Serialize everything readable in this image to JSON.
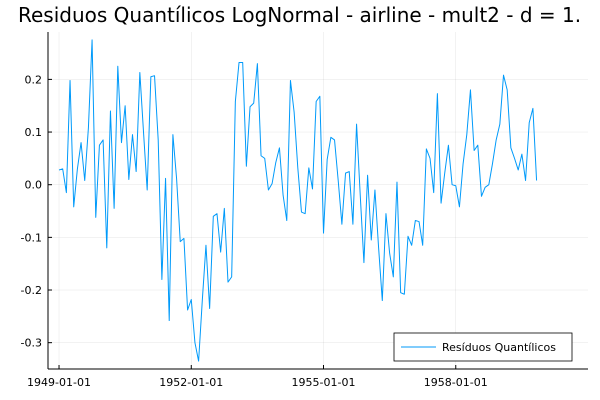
{
  "chart_data": {
    "type": "line",
    "title": "Residuos Quantílicos LogNormal - airline - mult2 - d = 1.",
    "xlabel": "",
    "ylabel": "",
    "x_start": "1949-01-01",
    "x_frequency": "monthly",
    "xlim": [
      "1948-10-01",
      "1961-01-01"
    ],
    "ylim": [
      -0.35,
      0.29
    ],
    "x_ticks": [
      "1949-01-01",
      "1952-01-01",
      "1955-01-01",
      "1958-01-01"
    ],
    "y_ticks": [
      0.2,
      0.1,
      0.0,
      -0.1,
      -0.2,
      -0.3
    ],
    "y_tick_labels": [
      "0.2",
      "0.1",
      "0.0",
      "-0.1",
      "-0.2",
      "-0.3"
    ],
    "grid": true,
    "legend_position": "bottom-right",
    "series": [
      {
        "name": "Resíduos Quantílicos",
        "color": "#009AFA",
        "values": [
          0.028,
          0.03,
          -0.015,
          0.198,
          -0.042,
          0.03,
          0.08,
          0.008,
          0.108,
          0.275,
          -0.062,
          0.075,
          0.085,
          -0.12,
          0.14,
          -0.045,
          0.225,
          0.08,
          0.15,
          0.01,
          0.095,
          0.025,
          0.213,
          0.1,
          -0.01,
          0.205,
          0.207,
          0.085,
          -0.18,
          0.012,
          -0.258,
          0.095,
          0.012,
          -0.108,
          -0.102,
          -0.238,
          -0.218,
          -0.3,
          -0.335,
          -0.22,
          -0.115,
          -0.235,
          -0.06,
          -0.055,
          -0.128,
          -0.045,
          -0.185,
          -0.175,
          0.158,
          0.232,
          0.232,
          0.035,
          0.148,
          0.155,
          0.23,
          0.055,
          0.05,
          -0.01,
          0.002,
          0.042,
          0.07,
          -0.02,
          -0.068,
          0.198,
          0.138,
          0.032,
          -0.052,
          -0.055,
          0.032,
          -0.008,
          0.158,
          0.168,
          -0.092,
          0.048,
          0.09,
          0.085,
          0.008,
          -0.075,
          0.022,
          0.025,
          -0.075,
          0.115,
          -0.02,
          -0.148,
          0.018,
          -0.105,
          -0.01,
          -0.12,
          -0.22,
          -0.055,
          -0.13,
          -0.175,
          0.005,
          -0.205,
          -0.208,
          -0.098,
          -0.115,
          -0.068,
          -0.07,
          -0.115,
          0.068,
          0.05,
          -0.015,
          0.173,
          -0.035,
          0.022,
          0.075,
          0.0,
          -0.002,
          -0.042,
          0.04,
          0.095,
          0.18,
          0.065,
          0.075,
          -0.022,
          -0.005,
          0.0,
          0.04,
          0.085,
          0.115,
          0.208,
          0.18,
          0.07,
          0.05,
          0.028,
          0.058,
          0.008,
          0.118,
          0.145,
          0.008
        ]
      }
    ]
  }
}
